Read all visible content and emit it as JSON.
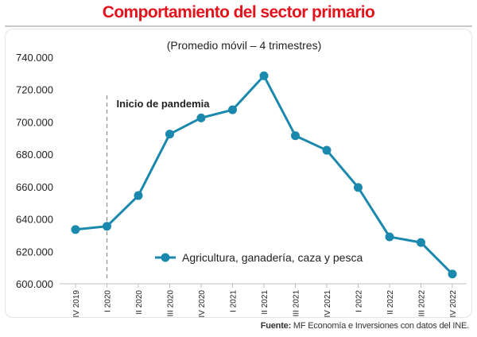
{
  "header": {
    "title": "Comportamiento del sector primario"
  },
  "colors": {
    "title": "#e3121b",
    "series": "#1a89ad",
    "marker": "#1a89ad",
    "grid": "#dcdcdc",
    "annotation_line": "#8c8c8c",
    "text": "#222222"
  },
  "chart_data": {
    "type": "line",
    "title": "Comportamiento del sector primario",
    "subtitle": "(Promedio móvil – 4 trimestres)",
    "categories": [
      "IV 2019",
      "I 2020",
      "II 2020",
      "III 2020",
      "IV 2020",
      "I 2021",
      "II 2021",
      "III 2021",
      "IV 2021",
      "I 2022",
      "II 2022",
      "III 2022",
      "IV 2022"
    ],
    "series": [
      {
        "name": "Agricultura, ganadería, caza y pesca",
        "values": [
          633500,
          635500,
          654500,
          692500,
          702500,
          707500,
          728500,
          691500,
          682500,
          659500,
          629000,
          625500,
          606000
        ]
      }
    ],
    "ylim": [
      600000,
      740000
    ],
    "yticks": [
      600000,
      620000,
      640000,
      660000,
      680000,
      700000,
      720000,
      740000
    ],
    "ytick_labels": [
      "600.000",
      "620.000",
      "640.000",
      "660.000",
      "680.000",
      "700.000",
      "720.000",
      "740.000"
    ],
    "grid": "none",
    "legend": "bottom-center",
    "annotations": [
      {
        "text": "Inicio de pandemia",
        "x": "I 2020",
        "style": "dashed-vertical-line"
      }
    ]
  },
  "footer": {
    "source_label": "Fuente:",
    "source_text": " MF Economía e Inversiones con datos del INE."
  }
}
